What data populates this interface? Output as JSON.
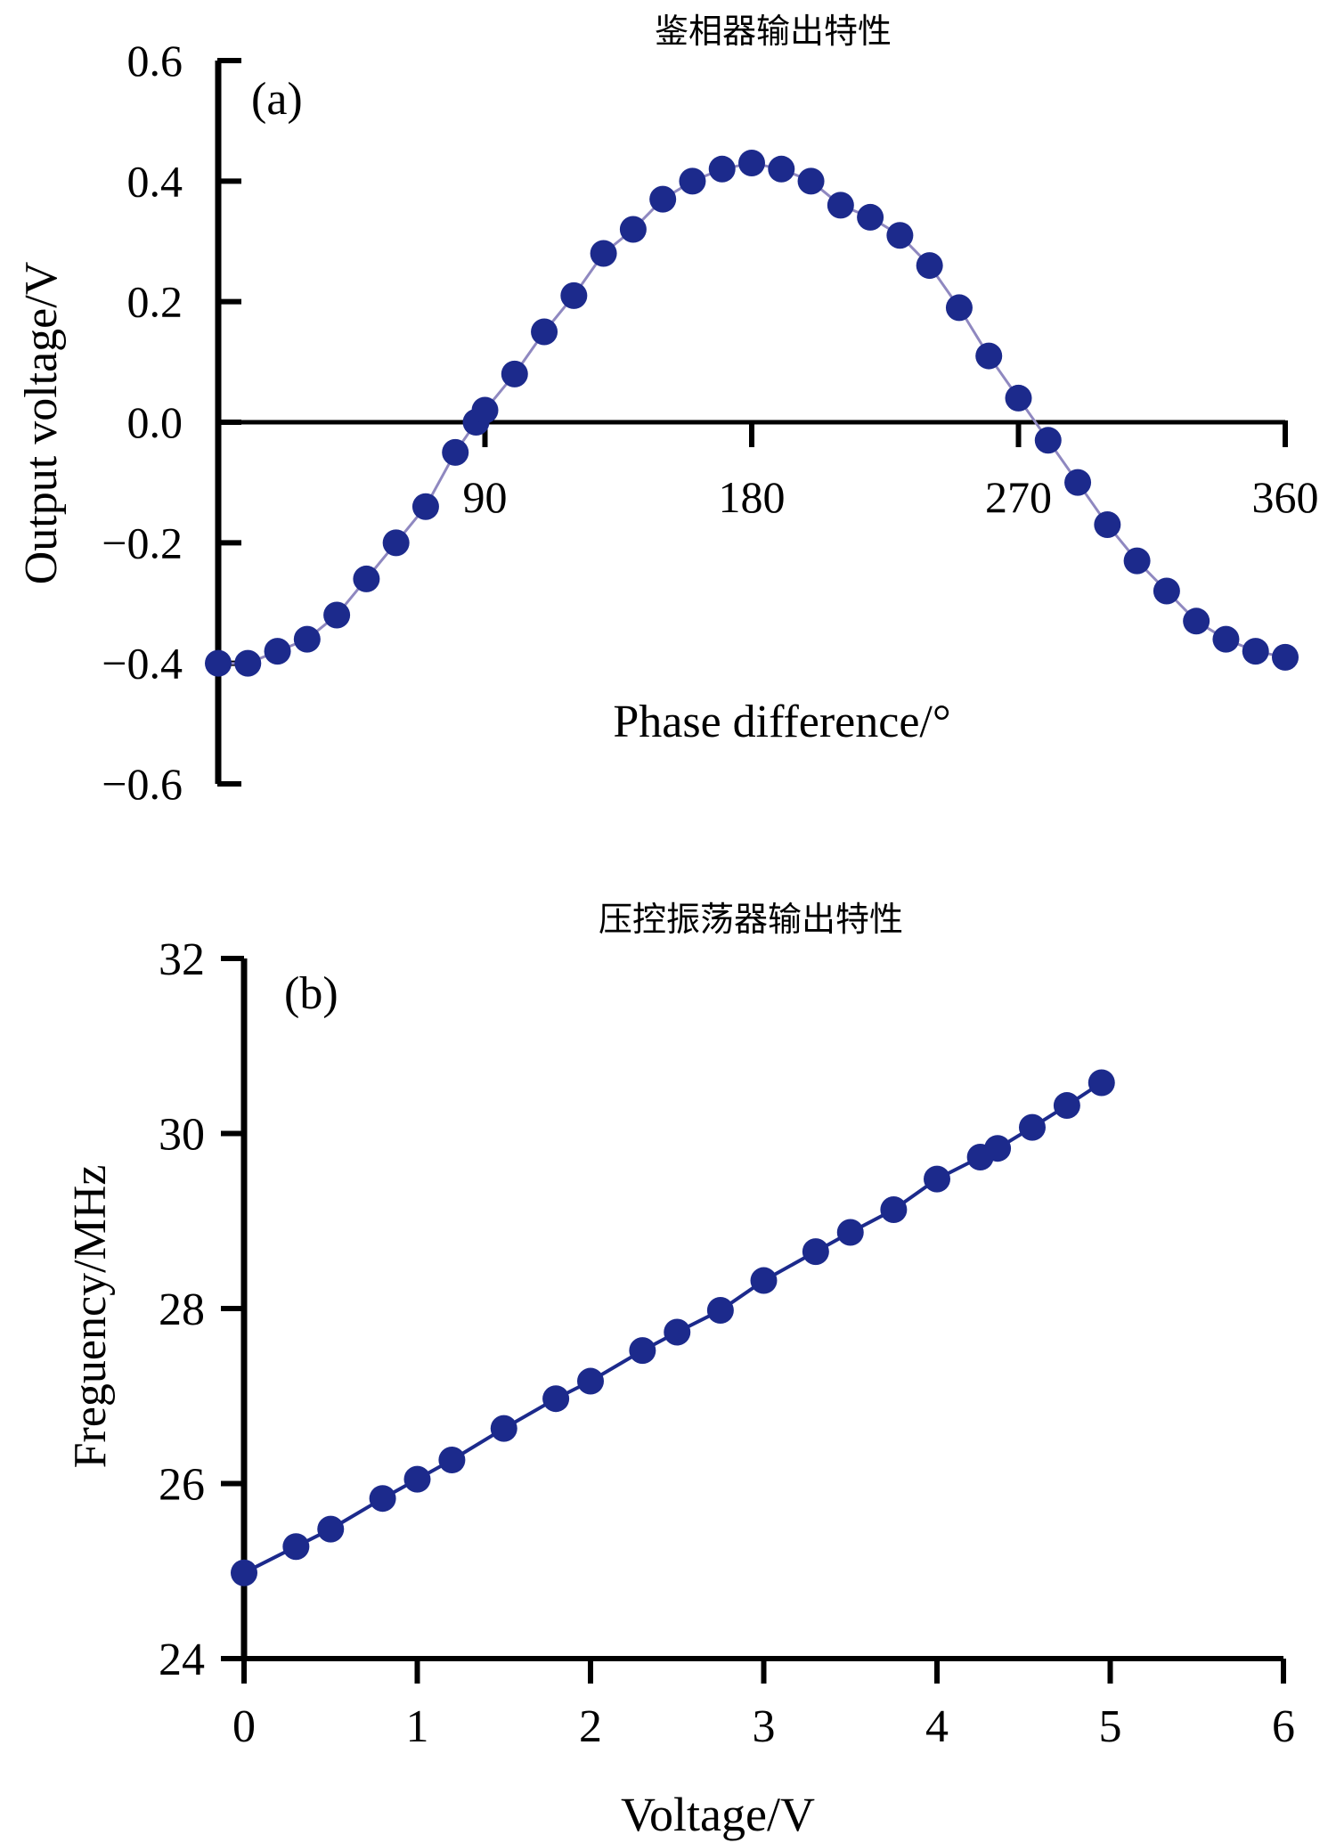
{
  "colors": {
    "marker": "#1c2a8c",
    "line_a": "#8f88c0",
    "line_b": "#1c2a8c",
    "axis": "#000000"
  },
  "chart_data": [
    {
      "id": "a",
      "type": "line",
      "title": "鉴相器输出特性",
      "panel_label": "(a)",
      "xlabel": "Phase difference/°",
      "ylabel": "Output voltage/V",
      "xlim": [
        0,
        360
      ],
      "ylim": [
        -0.6,
        0.6
      ],
      "xticks": [
        90,
        180,
        270,
        360
      ],
      "xtick_labels": [
        "90",
        "180",
        "270",
        "360"
      ],
      "yticks": [
        -0.6,
        -0.4,
        -0.2,
        0.0,
        0.2,
        0.4,
        0.6
      ],
      "ytick_labels": [
        "−0.6",
        "−0.4",
        "−0.2",
        "0.0",
        "0.2",
        "0.4",
        "0.6"
      ],
      "grid": false,
      "legend": "none",
      "series": [
        {
          "x": [
            0,
            10,
            20,
            30,
            40,
            50,
            60,
            70,
            80,
            87,
            90,
            100,
            110,
            120,
            130,
            140,
            150,
            160,
            170,
            180,
            190,
            200,
            210,
            220,
            230,
            240,
            250,
            260,
            270,
            280,
            290,
            300,
            310,
            320,
            330,
            340,
            350,
            360
          ],
          "y": [
            -0.4,
            -0.4,
            -0.38,
            -0.36,
            -0.32,
            -0.26,
            -0.2,
            -0.14,
            -0.05,
            0.0,
            0.02,
            0.08,
            0.15,
            0.21,
            0.28,
            0.32,
            0.37,
            0.4,
            0.42,
            0.43,
            0.42,
            0.4,
            0.36,
            0.34,
            0.31,
            0.26,
            0.19,
            0.11,
            0.04,
            -0.03,
            -0.1,
            -0.17,
            -0.23,
            -0.28,
            -0.33,
            -0.36,
            -0.38,
            -0.39
          ]
        }
      ]
    },
    {
      "id": "b",
      "type": "line",
      "title": "压控振荡器输出特性",
      "panel_label": "(b)",
      "xlabel": "Voltage/V",
      "ylabel": "Freguency/MHz",
      "xlim": [
        0,
        6
      ],
      "ylim": [
        24,
        32
      ],
      "xticks": [
        0,
        1,
        2,
        3,
        4,
        5,
        6
      ],
      "xtick_labels": [
        "0",
        "1",
        "2",
        "3",
        "4",
        "5",
        "6"
      ],
      "yticks": [
        24,
        26,
        28,
        30,
        32
      ],
      "ytick_labels": [
        "24",
        "26",
        "28",
        "30",
        "32"
      ],
      "grid": false,
      "legend": "none",
      "series": [
        {
          "x": [
            0.0,
            0.3,
            0.5,
            0.8,
            1.0,
            1.2,
            1.5,
            1.8,
            2.0,
            2.3,
            2.5,
            2.75,
            3.0,
            3.3,
            3.5,
            3.75,
            4.0,
            4.25,
            4.35,
            4.55,
            4.75,
            4.95
          ],
          "y": [
            24.98,
            25.28,
            25.48,
            25.83,
            26.05,
            26.27,
            26.63,
            26.97,
            27.17,
            27.52,
            27.73,
            27.98,
            28.32,
            28.65,
            28.87,
            29.13,
            29.48,
            29.73,
            29.83,
            30.07,
            30.32,
            30.58
          ]
        }
      ]
    }
  ]
}
